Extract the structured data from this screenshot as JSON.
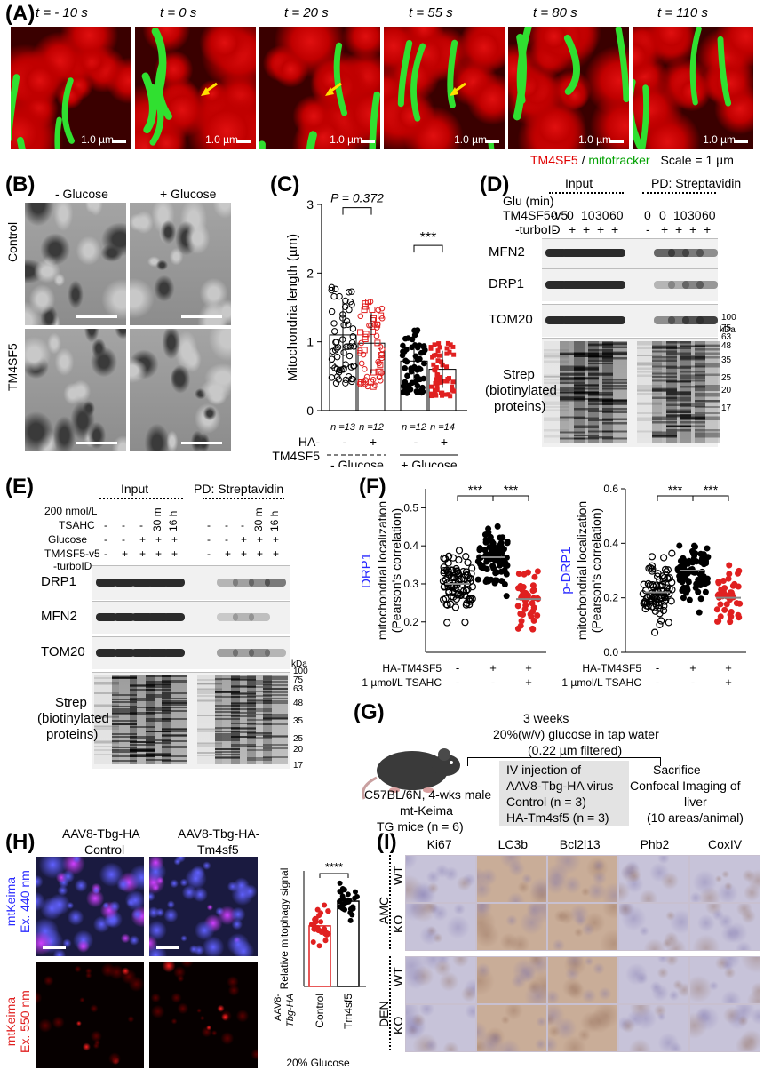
{
  "panels": {
    "A": {
      "label": "(A)",
      "times": [
        "t = - 10 s",
        "t = 0 s",
        "t = 20 s",
        "t = 55 s",
        "t = 80 s",
        "t = 110 s"
      ],
      "scale_bar": "1.0 µm",
      "legend_red": "TM4SF5",
      "legend_sep": " / ",
      "legend_green": "mitotracker",
      "legend_scale": "Scale = 1 µm"
    },
    "B": {
      "label": "(B)",
      "col1": "- Glucose",
      "col2": "+ Glucose",
      "row1": "Control",
      "row2": "TM4SF5"
    },
    "C": {
      "label": "(C)",
      "p_text": "P = 0.372",
      "sig": "***",
      "ylabel": "Mitochondria length (µm)",
      "n_labels": [
        "n =13",
        "n =12",
        "n =12",
        "n =14"
      ],
      "row_label1": "HA-",
      "row_label2": "TM4SF5",
      "signs": [
        "-",
        "+",
        "-",
        "+"
      ],
      "group1": "- Glucose",
      "group2": "+ Glucose",
      "yticks": [
        "0",
        "1",
        "2",
        "3"
      ]
    },
    "D": {
      "label": "(D)",
      "input": "Input",
      "pd": "PD: Streptavidin",
      "glu": "Glu (min)",
      "glu_vals": [
        "0",
        "0",
        "10",
        "30",
        "60",
        "0",
        "0",
        "10",
        "30",
        "60"
      ],
      "tm4": "TM4SF5-v5",
      "turbo": "-turboID",
      "tm4_vals": [
        "-",
        "+",
        "+",
        "+",
        "+",
        "-",
        "+",
        "+",
        "+",
        "+"
      ],
      "blots": [
        "MFN2",
        "DRP1",
        "TOM20"
      ],
      "strep1": "Strep",
      "strep2": "(biotinylated",
      "strep3": "proteins)",
      "kda": "kDa",
      "markers": [
        "100",
        "75",
        "63",
        "48",
        "35",
        "25",
        "20",
        "17"
      ]
    },
    "E": {
      "label": "(E)",
      "input": "Input",
      "pd": "PD: Streptavidin",
      "nmol": "200 nmol/L",
      "tsahc": "TSAHC",
      "glucose": "Glucose",
      "tm4": "TM4SF5-v5",
      "turbo": "-turboID",
      "tsahc_time": [
        "30 m",
        "16 h"
      ],
      "blots": [
        "DRP1",
        "MFN2",
        "TOM20"
      ],
      "strep1": "Strep",
      "strep2": "(biotinylated",
      "strep3": "proteins)",
      "kda": "kDa",
      "markers": [
        "100",
        "75",
        "63",
        "48",
        "35",
        "25",
        "20",
        "17"
      ]
    },
    "F": {
      "label": "(F)",
      "left_prot": "DRP1",
      "right_prot": "p-DRP1",
      "ylabel1": "mitochondrial localization",
      "ylabel2": "(Pearson's correlation)",
      "sig": "***",
      "ha": "HA-TM4SF5",
      "tsahc": "1 µmol/L TSAHC",
      "ha_signs": [
        "-",
        "+",
        "+"
      ],
      "ts_signs": [
        "-",
        "-",
        "+"
      ],
      "left_ticks": [
        "0.2",
        "0.3",
        "0.4",
        "0.5"
      ],
      "right_ticks": [
        "0.0",
        "0.2",
        "0.4",
        "0.6"
      ]
    },
    "G": {
      "label": "(G)",
      "weeks": "3 weeks",
      "glucose": "20%(w/v) glucose in tap water",
      "filter": "(0.22 µm filtered)",
      "mouse1": "C57BL/6N, 4-wks male",
      "mouse2": "mt-Keima",
      "mouse3": "TG mice (n = 6)",
      "iv1": "IV injection of",
      "iv2": "AAV8-Tbg-HA virus",
      "iv3": "Control (n = 3)",
      "iv4": "HA-Tm4sf5 (n = 3)",
      "end1": "Sacrifice",
      "end2": "Confocal Imaging of",
      "end3": "liver",
      "end4": "(10 areas/animal)"
    },
    "H": {
      "label": "(H)",
      "col1a": "AAV8-Tbg-HA",
      "col1b": "Control",
      "col2a": "AAV8-Tbg-HA-",
      "col2b": "Tm4sf5",
      "row1a": "mtKeima",
      "row1b": "Ex. 440 nm",
      "row2a": "mtKeima",
      "row2b": "Ex. 550 nm",
      "ylabel": "Relative mitophagy signal",
      "sig": "****",
      "x1": "Control",
      "x2": "Tm4sf5",
      "aav": "AAV8-",
      "tbg": "Tbg-HA",
      "glucose": "20% Glucose"
    },
    "I": {
      "label": "(I)",
      "cols": [
        "Ki67",
        "LC3b",
        "Bcl2l13",
        "Phb2",
        "CoxIV"
      ],
      "amc": "AMC",
      "den": "DEN",
      "wt": "WT",
      "ko": "KO"
    }
  },
  "chart_data": [
    {
      "type": "bar",
      "title": "",
      "ylabel": "Mitochondria length (µm)",
      "ylim": [
        0,
        3
      ],
      "categories": [
        "- Glucose / HA-TM4SF5 -",
        "- Glucose / HA-TM4SF5 +",
        "+ Glucose / HA-TM4SF5 -",
        "+ Glucose / HA-TM4SF5 +"
      ],
      "values": [
        1.1,
        0.98,
        0.72,
        0.6
      ],
      "n": [
        13,
        12,
        12,
        14
      ],
      "p_value_group1": 0.372
    },
    {
      "type": "scatter",
      "title": "DRP1",
      "ylabel": "mitochondrial localization (Pearson's correlation)",
      "ylim": [
        0.1,
        0.55
      ],
      "categories": [
        "-/-",
        "+/-",
        "+/+"
      ],
      "values": [
        0.3,
        0.37,
        0.26
      ]
    },
    {
      "type": "scatter",
      "title": "p-DRP1",
      "ylabel": "mitochondrial localization (Pearson's correlation)",
      "ylim": [
        0,
        0.6
      ],
      "categories": [
        "-/-",
        "+/-",
        "+/+"
      ],
      "values": [
        0.22,
        0.3,
        0.2
      ]
    },
    {
      "type": "bar",
      "title": "",
      "ylabel": "Relative mitophagy signal",
      "categories": [
        "Control",
        "Tm4sf5"
      ],
      "values": [
        22,
        31
      ]
    }
  ]
}
